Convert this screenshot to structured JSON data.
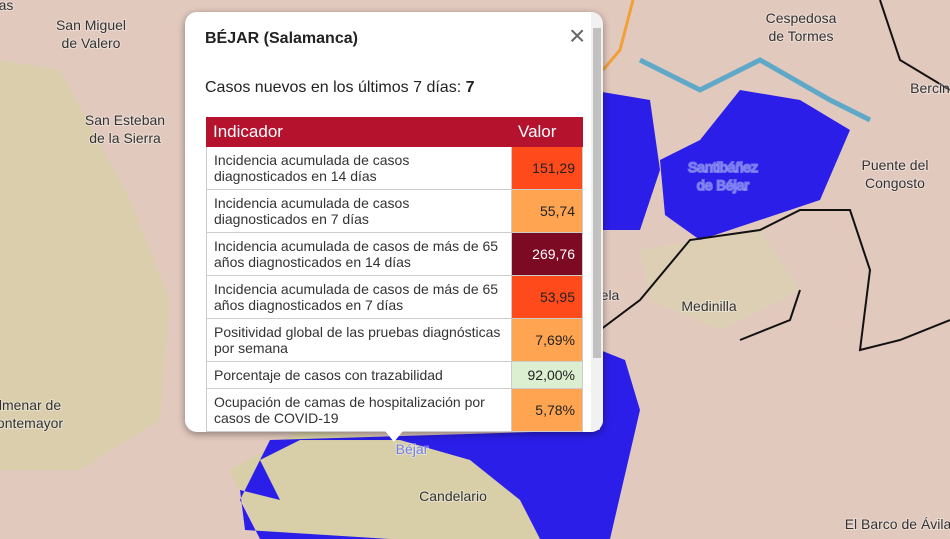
{
  "map": {
    "labels": [
      {
        "lines": [
          "as"
        ]
      },
      {
        "lines": [
          "San Miguel",
          "de Valero"
        ]
      },
      {
        "lines": [
          "San Esteban",
          "de la Sierra"
        ]
      },
      {
        "lines": [
          "lmenar de",
          "ontemayor"
        ]
      },
      {
        "lines": [
          "Cespedosa",
          "de Tormes"
        ]
      },
      {
        "lines": [
          "Bercin"
        ]
      },
      {
        "lines": [
          "Santibáñez",
          "de Béjar"
        ]
      },
      {
        "lines": [
          "Puente del",
          "Congosto"
        ]
      },
      {
        "lines": [
          "ela"
        ]
      },
      {
        "lines": [
          "Medinilla"
        ]
      },
      {
        "lines": [
          "Béjar"
        ]
      },
      {
        "lines": [
          "Candelario"
        ]
      },
      {
        "lines": [
          "El Barco de Ávila"
        ]
      }
    ]
  },
  "popup": {
    "title": "BÉJAR (Salamanca)",
    "close": "×",
    "cases_label": "Casos nuevos en los últimos 7 días:",
    "cases_value": "7",
    "table": {
      "headers": [
        "Indicador",
        "Valor"
      ],
      "rows": [
        {
          "indicator": "Incidencia acumulada de casos diagnosticados en 14 días",
          "value": "151,29",
          "color": "#ff4a1c"
        },
        {
          "indicator": "Incidencia acumulada de casos diagnosticados en 7 días",
          "value": "55,74",
          "color": "#ffa552"
        },
        {
          "indicator": "Incidencia acumulada de casos de más de 65 años diagnosticados en 14 días",
          "value": "269,76",
          "color": "#7b0a22"
        },
        {
          "indicator": "Incidencia acumulada de casos de más de 65 años diagnosticados en 7 días",
          "value": "53,95",
          "color": "#ff4a1c"
        },
        {
          "indicator": "Positividad global de las pruebas diagnósticas por semana",
          "value": "7,69%",
          "color": "#ffa552"
        },
        {
          "indicator": "Porcentaje de casos con trazabilidad",
          "value": "92,00%",
          "color": "#dcefd0"
        },
        {
          "indicator": "Ocupación de camas de hospitalización por casos de COVID-19",
          "value": "5,78%",
          "color": "#ffa552"
        }
      ]
    }
  }
}
